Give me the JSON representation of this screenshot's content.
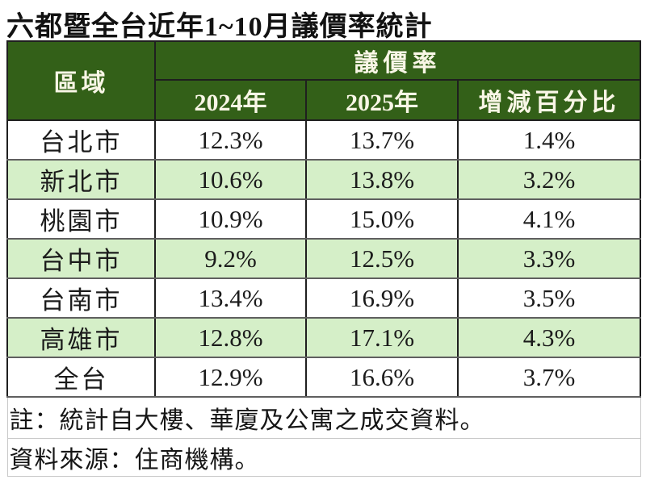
{
  "title": "六都暨全台近年1~10月議價率統計",
  "table": {
    "header": {
      "region": "區域",
      "group": "議價率",
      "col_2024": "2024年",
      "col_2025": "2025年",
      "col_change": "增減百分比"
    },
    "rows": [
      {
        "region": "台北市",
        "y2024": "12.3%",
        "y2025": "13.7%",
        "change": "1.4%"
      },
      {
        "region": "新北市",
        "y2024": "10.6%",
        "y2025": "13.8%",
        "change": "3.2%"
      },
      {
        "region": "桃園市",
        "y2024": "10.9%",
        "y2025": "15.0%",
        "change": "4.1%"
      },
      {
        "region": "台中市",
        "y2024": "9.2%",
        "y2025": "12.5%",
        "change": "3.3%"
      },
      {
        "region": "台南市",
        "y2024": "13.4%",
        "y2025": "16.9%",
        "change": "3.5%"
      },
      {
        "region": "高雄市",
        "y2024": "12.8%",
        "y2025": "17.1%",
        "change": "4.3%"
      },
      {
        "region": "全台",
        "y2024": "12.9%",
        "y2025": "16.6%",
        "change": "3.7%"
      }
    ],
    "note": "註：統計自大樓、華廈及公寓之成交資料。",
    "source": "資料來源：住商機構。"
  },
  "colors": {
    "header_bg": "#336018",
    "header_text": "#f9f6e6",
    "row_bg": "#ffffff",
    "row_alt_bg": "#d5efc8",
    "data_text": "#1b1b1b",
    "grid_dark": "#1f1f1f",
    "grid_gray": "#5f5f5f"
  },
  "chart_data": {
    "type": "table",
    "title": "六都暨全台近年1~10月議價率統計",
    "column_group": {
      "label": "議價率",
      "spans": [
        "2024年",
        "2025年",
        "增減百分比"
      ]
    },
    "columns": [
      "區域",
      "2024年",
      "2025年",
      "增減百分比"
    ],
    "unit": "%",
    "rows": [
      [
        "台北市",
        12.3,
        13.7,
        1.4
      ],
      [
        "新北市",
        10.6,
        13.8,
        3.2
      ],
      [
        "桃園市",
        10.9,
        15.0,
        4.1
      ],
      [
        "台中市",
        9.2,
        12.5,
        3.3
      ],
      [
        "台南市",
        13.4,
        16.9,
        3.5
      ],
      [
        "高雄市",
        12.8,
        17.1,
        4.3
      ],
      [
        "全台",
        12.9,
        16.6,
        3.7
      ]
    ],
    "note": "註：統計自大樓、華廈及公寓之成交資料。",
    "source": "資料來源：住商機構。"
  }
}
